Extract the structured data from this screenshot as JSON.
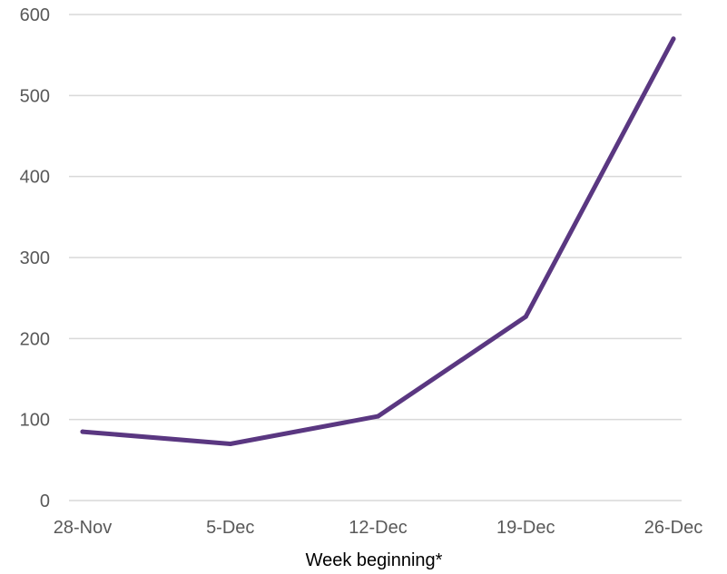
{
  "chart_data": {
    "type": "line",
    "title": "",
    "xlabel": "Week beginning*",
    "ylabel": "",
    "categories": [
      "28-Nov",
      "5-Dec",
      "12-Dec",
      "19-Dec",
      "26-Dec"
    ],
    "series": [
      {
        "values": [
          85,
          70,
          104,
          227,
          570
        ]
      }
    ],
    "ylim": [
      0,
      600
    ],
    "yticks": [
      0,
      100,
      200,
      300,
      400,
      500,
      600
    ],
    "grid": true,
    "legend": "none",
    "colors": {
      "line": "#5a3781",
      "grid": "#d9d9d9",
      "tick_label": "#595959",
      "axis_title": "#000000"
    }
  }
}
